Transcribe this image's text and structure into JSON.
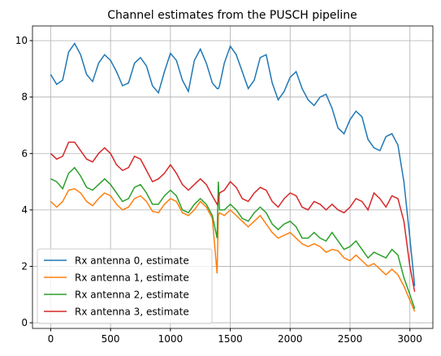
{
  "chart_data": {
    "type": "line",
    "title": "Channel estimates from the PUSCH pipeline",
    "x": [
      0,
      50,
      100,
      150,
      200,
      250,
      300,
      350,
      400,
      450,
      500,
      550,
      600,
      650,
      700,
      750,
      800,
      850,
      900,
      950,
      1000,
      1050,
      1100,
      1150,
      1200,
      1250,
      1300,
      1350,
      1390,
      1400,
      1410,
      1450,
      1500,
      1550,
      1600,
      1650,
      1700,
      1750,
      1800,
      1850,
      1900,
      1950,
      2000,
      2050,
      2100,
      2150,
      2200,
      2250,
      2300,
      2350,
      2400,
      2450,
      2500,
      2550,
      2600,
      2650,
      2700,
      2750,
      2800,
      2850,
      2900,
      2950,
      3000,
      3040
    ],
    "series": [
      {
        "name": "Rx antenna 0, estimate",
        "color": "#1f77b4",
        "values": [
          8.8,
          8.45,
          8.6,
          9.6,
          9.9,
          9.5,
          8.8,
          8.55,
          9.2,
          9.5,
          9.3,
          8.9,
          8.4,
          8.5,
          9.2,
          9.4,
          9.1,
          8.4,
          8.15,
          8.9,
          9.55,
          9.3,
          8.6,
          8.2,
          9.3,
          9.7,
          9.2,
          8.5,
          8.3,
          8.3,
          8.4,
          9.2,
          9.8,
          9.5,
          8.9,
          8.3,
          8.6,
          9.4,
          9.5,
          8.5,
          7.9,
          8.2,
          8.7,
          8.9,
          8.3,
          7.9,
          7.7,
          8.0,
          8.1,
          7.6,
          6.9,
          6.7,
          7.2,
          7.5,
          7.3,
          6.5,
          6.2,
          6.1,
          6.6,
          6.7,
          6.3,
          5.0,
          3.0,
          1.3
        ]
      },
      {
        "name": "Rx antenna 1, estimate",
        "color": "#ff7f0e",
        "values": [
          4.3,
          4.1,
          4.3,
          4.7,
          4.75,
          4.6,
          4.3,
          4.15,
          4.4,
          4.6,
          4.5,
          4.2,
          4.0,
          4.1,
          4.4,
          4.5,
          4.3,
          3.95,
          3.9,
          4.2,
          4.4,
          4.3,
          3.9,
          3.8,
          4.0,
          4.3,
          4.1,
          3.7,
          1.75,
          3.8,
          3.9,
          3.8,
          4.0,
          3.8,
          3.6,
          3.4,
          3.6,
          3.8,
          3.5,
          3.2,
          3.0,
          3.1,
          3.2,
          3.0,
          2.8,
          2.7,
          2.8,
          2.7,
          2.5,
          2.6,
          2.55,
          2.3,
          2.2,
          2.4,
          2.2,
          2.0,
          2.1,
          1.9,
          1.7,
          1.9,
          1.7,
          1.3,
          0.8,
          0.4
        ]
      },
      {
        "name": "Rx antenna 2, estimate",
        "color": "#2ca02c",
        "values": [
          5.1,
          5.0,
          4.75,
          5.3,
          5.5,
          5.2,
          4.8,
          4.7,
          4.9,
          5.1,
          4.9,
          4.6,
          4.3,
          4.4,
          4.8,
          4.9,
          4.6,
          4.2,
          4.2,
          4.5,
          4.7,
          4.5,
          4.0,
          3.9,
          4.2,
          4.4,
          4.2,
          3.8,
          3.0,
          5.0,
          4.0,
          4.0,
          4.2,
          4.0,
          3.7,
          3.6,
          3.9,
          4.1,
          3.9,
          3.5,
          3.3,
          3.5,
          3.6,
          3.4,
          3.0,
          3.0,
          3.2,
          3.0,
          2.9,
          3.2,
          2.9,
          2.6,
          2.7,
          2.9,
          2.6,
          2.3,
          2.5,
          2.4,
          2.3,
          2.6,
          2.4,
          1.6,
          1.0,
          0.5
        ]
      },
      {
        "name": "Rx antenna 3, estimate",
        "color": "#d62728",
        "values": [
          6.0,
          5.8,
          5.9,
          6.4,
          6.4,
          6.1,
          5.8,
          5.7,
          6.0,
          6.2,
          6.0,
          5.6,
          5.4,
          5.5,
          5.9,
          5.8,
          5.4,
          5.0,
          5.1,
          5.3,
          5.6,
          5.3,
          4.9,
          4.7,
          4.9,
          5.1,
          4.9,
          4.5,
          4.2,
          4.3,
          4.6,
          4.7,
          5.0,
          4.8,
          4.4,
          4.3,
          4.6,
          4.8,
          4.7,
          4.3,
          4.1,
          4.4,
          4.6,
          4.5,
          4.1,
          4.0,
          4.3,
          4.2,
          4.0,
          4.2,
          4.0,
          3.9,
          4.1,
          4.4,
          4.3,
          4.0,
          4.6,
          4.4,
          4.1,
          4.5,
          4.4,
          3.6,
          2.0,
          1.1
        ]
      }
    ],
    "xlim": [
      -152,
      3192
    ],
    "ylim": [
      -0.2,
      10.52
    ],
    "xticks": [
      0,
      500,
      1000,
      1500,
      2000,
      2500,
      3000
    ],
    "yticks": [
      0,
      2,
      4,
      6,
      8,
      10
    ],
    "grid": true,
    "legend": "lower left"
  }
}
